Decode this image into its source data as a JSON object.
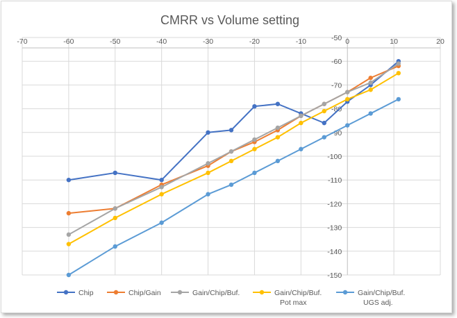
{
  "chart_data": {
    "type": "line",
    "title": "CMRR vs Volume setting",
    "xlabel": "",
    "ylabel": "",
    "xlim": [
      -70,
      20
    ],
    "ylim": [
      -150,
      -50
    ],
    "x_ticks": [
      "-70",
      "-60",
      "-50",
      "-40",
      "-30",
      "-20",
      "-10",
      "0",
      "10",
      "20"
    ],
    "y_ticks": [
      "-50",
      "-60",
      "-70",
      "-80",
      "-90",
      "-100",
      "-110",
      "-120",
      "-130",
      "-140",
      "-150"
    ],
    "grid": true,
    "legend_position": "bottom",
    "series": [
      {
        "name": "Chip",
        "color": "#4472c4",
        "x": [
          -60,
          -50,
          -40,
          -30,
          -25,
          -20,
          -15,
          -10,
          -5,
          0,
          5,
          11
        ],
        "y": [
          -110,
          -107,
          -110,
          -90,
          -89,
          -79,
          -78,
          -82,
          -86,
          -77,
          -70,
          -60
        ]
      },
      {
        "name": "Chip/Gain",
        "color": "#ed7d31",
        "x": [
          -60,
          -50,
          -40,
          -30,
          -25,
          -20,
          -15,
          -10,
          -5,
          0,
          5,
          11
        ],
        "y": [
          -124,
          -122,
          -112,
          -104,
          -98,
          -94,
          -89,
          -83,
          -78,
          -73,
          -67,
          -62
        ]
      },
      {
        "name": "Gain/Chip/Buf.",
        "color": "#a5a5a5",
        "x": [
          -60,
          -50,
          -40,
          -30,
          -25,
          -20,
          -15,
          -10,
          -5,
          0,
          5,
          11
        ],
        "y": [
          -133,
          -122,
          -113,
          -103,
          -98,
          -93,
          -88,
          -83,
          -78,
          -73,
          -69,
          -61
        ]
      },
      {
        "name": "Gain/Chip/Buf. Pot max",
        "name_lines": [
          "Gain/Chip/Buf.",
          "Pot max"
        ],
        "color": "#ffc000",
        "x": [
          -60,
          -50,
          -40,
          -30,
          -25,
          -20,
          -15,
          -10,
          -5,
          0,
          5,
          11
        ],
        "y": [
          -137,
          -126,
          -116,
          -107,
          -102,
          -97,
          -92,
          -86,
          -81,
          -76,
          -72,
          -65
        ]
      },
      {
        "name": "Gain/Chip/Buf. UGS adj.",
        "name_lines": [
          "Gain/Chip/Buf.",
          "UGS adj."
        ],
        "color": "#5b9bd5",
        "x": [
          -60,
          -50,
          -40,
          -30,
          -25,
          -20,
          -15,
          -10,
          -5,
          0,
          5,
          11
        ],
        "y": [
          -150,
          -138,
          -128,
          -116,
          -112,
          -107,
          -102,
          -97,
          -92,
          -87,
          -82,
          -76
        ]
      }
    ]
  }
}
